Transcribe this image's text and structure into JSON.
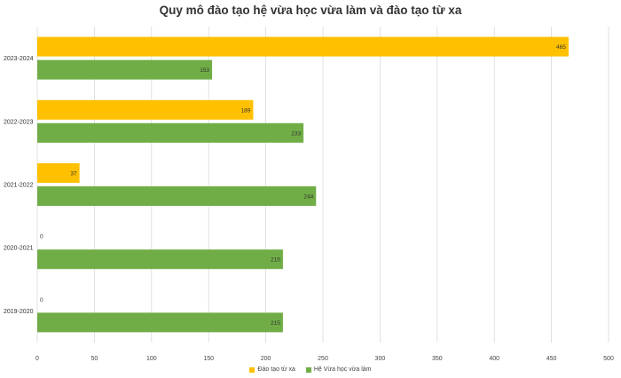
{
  "chart_data": {
    "type": "bar",
    "orientation": "horizontal",
    "title": "Quy mô đào tạo hệ vừa học vừa làm và đào tạo từ xa",
    "xlabel": "",
    "ylabel": "",
    "categories": [
      "2023-2024",
      "2022-2023",
      "2021-2022",
      "2020-2021",
      "2019-2020"
    ],
    "series": [
      {
        "name": "Đào tạo từ xa",
        "color": "#FFC000",
        "values": [
          465,
          189,
          37,
          0,
          0
        ]
      },
      {
        "name": "Hệ Vừa học vừa làm",
        "color": "#70AD47",
        "values": [
          153,
          233,
          244,
          215,
          215
        ]
      }
    ],
    "xlim": [
      0,
      500
    ],
    "xticks": [
      "0",
      "50",
      "100",
      "150",
      "200",
      "250",
      "300",
      "350",
      "400",
      "450",
      "500"
    ],
    "grid": true,
    "legend_position": "bottom"
  }
}
